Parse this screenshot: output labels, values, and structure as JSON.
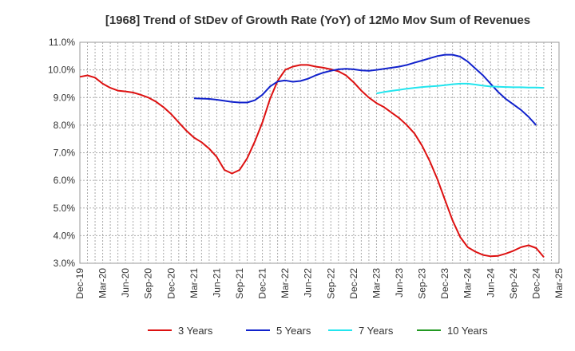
{
  "chart_data": {
    "type": "line",
    "title": "[1968]  Trend of StDev of Growth Rate (YoY) of 12Mo Mov Sum of Revenues",
    "xlabel": "",
    "ylabel": "",
    "ylim": [
      3.0,
      11.0
    ],
    "yticks": [
      "3.0%",
      "4.0%",
      "5.0%",
      "6.0%",
      "7.0%",
      "8.0%",
      "9.0%",
      "10.0%",
      "11.0%"
    ],
    "xticks": [
      "Dec-19",
      "Mar-20",
      "Jun-20",
      "Sep-20",
      "Dec-20",
      "Mar-21",
      "Jun-21",
      "Sep-21",
      "Dec-21",
      "Mar-22",
      "Jun-22",
      "Sep-22",
      "Dec-22",
      "Mar-23",
      "Jun-23",
      "Sep-23",
      "Dec-23",
      "Mar-24",
      "Jun-24",
      "Sep-24",
      "Dec-24",
      "Mar-25"
    ],
    "x_range_months": [
      0,
      63
    ],
    "grid": true,
    "legend_position": "bottom",
    "series": [
      {
        "name": "3 Years",
        "color": "#dd1111",
        "start_month": 0,
        "values": [
          9.75,
          9.8,
          9.72,
          9.5,
          9.35,
          9.25,
          9.22,
          9.18,
          9.1,
          9.0,
          8.85,
          8.65,
          8.4,
          8.1,
          7.8,
          7.55,
          7.38,
          7.15,
          6.85,
          6.38,
          6.25,
          6.38,
          6.8,
          7.4,
          8.1,
          8.95,
          9.6,
          10.0,
          10.12,
          10.18,
          10.18,
          10.12,
          10.08,
          10.02,
          9.95,
          9.8,
          9.55,
          9.25,
          9.0,
          8.8,
          8.65,
          8.45,
          8.25,
          8.0,
          7.7,
          7.25,
          6.7,
          6.05,
          5.3,
          4.55,
          3.95,
          3.58,
          3.42,
          3.3,
          3.25,
          3.27,
          3.35,
          3.45,
          3.58,
          3.65,
          3.55,
          3.22
        ]
      },
      {
        "name": "5 Years",
        "color": "#1122cc",
        "start_month": 15,
        "values": [
          8.97,
          8.96,
          8.95,
          8.92,
          8.88,
          8.84,
          8.82,
          8.82,
          8.9,
          9.1,
          9.4,
          9.58,
          9.62,
          9.57,
          9.6,
          9.68,
          9.8,
          9.9,
          9.97,
          10.02,
          10.04,
          10.02,
          9.98,
          9.97,
          10.0,
          10.04,
          10.08,
          10.12,
          10.18,
          10.26,
          10.34,
          10.42,
          10.5,
          10.55,
          10.55,
          10.48,
          10.3,
          10.05,
          9.8,
          9.5,
          9.2,
          8.95,
          8.75,
          8.55,
          8.3,
          8.0
        ]
      },
      {
        "name": "7 Years",
        "color": "#22e5ee",
        "start_month": 39,
        "values": [
          9.15,
          9.2,
          9.24,
          9.28,
          9.32,
          9.35,
          9.38,
          9.4,
          9.42,
          9.45,
          9.48,
          9.5,
          9.5,
          9.47,
          9.43,
          9.4,
          9.39,
          9.38,
          9.37,
          9.37,
          9.36,
          9.36,
          9.35
        ]
      },
      {
        "name": "10 Years",
        "color": "#229922",
        "start_month": 0,
        "values": []
      }
    ]
  }
}
